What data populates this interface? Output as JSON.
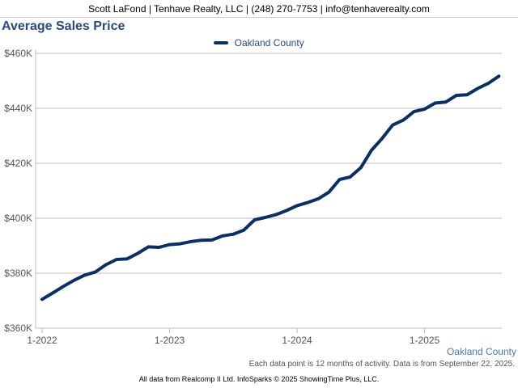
{
  "header": {
    "text": "Scott LaFond | Tenhave Realty, LLC | (248) 270-7753 | info@tenhaverealty.com"
  },
  "chart_data": {
    "type": "line",
    "title": "Average Sales Price",
    "xlabel": "",
    "ylabel": "",
    "ylim": [
      360000,
      460000
    ],
    "y_ticks": [
      360000,
      380000,
      400000,
      420000,
      440000,
      460000
    ],
    "y_tick_labels": [
      "$360K",
      "$380K",
      "$400K",
      "$420K",
      "$440K",
      "$460K"
    ],
    "x_tick_labels": [
      "1-2022",
      "1-2023",
      "1-2024",
      "1-2025"
    ],
    "x_tick_dates": [
      "2022-01",
      "2023-01",
      "2024-01",
      "2025-01"
    ],
    "legend_position": "top-center",
    "grid": "horizontal",
    "colors": {
      "line": "#0b2e63",
      "grid": "#bdbdbd",
      "axis_text": "#555555"
    },
    "x": [
      "2022-01",
      "2022-02",
      "2022-03",
      "2022-04",
      "2022-05",
      "2022-06",
      "2022-07",
      "2022-08",
      "2022-09",
      "2022-10",
      "2022-11",
      "2022-12",
      "2023-01",
      "2023-02",
      "2023-03",
      "2023-04",
      "2023-05",
      "2023-06",
      "2023-07",
      "2023-08",
      "2023-09",
      "2023-10",
      "2023-11",
      "2023-12",
      "2024-01",
      "2024-02",
      "2024-03",
      "2024-04",
      "2024-05",
      "2024-06",
      "2024-07",
      "2024-08",
      "2024-09",
      "2024-10",
      "2024-11",
      "2024-12",
      "2025-01",
      "2025-02",
      "2025-03",
      "2025-04",
      "2025-05",
      "2025-06",
      "2025-07",
      "2025-08"
    ],
    "series": [
      {
        "name": "Oakland County",
        "values": [
          370500,
          372800,
          375200,
          377400,
          379300,
          380400,
          383100,
          385000,
          385200,
          387200,
          389600,
          389400,
          390400,
          390700,
          391500,
          392000,
          392100,
          393600,
          394200,
          395700,
          399400,
          400300,
          401300,
          402800,
          404600,
          405700,
          407100,
          409500,
          414100,
          415000,
          418400,
          424700,
          429000,
          433900,
          435700,
          438800,
          439700,
          441900,
          442300,
          444700,
          444900,
          447200,
          449100,
          451700
        ]
      }
    ]
  },
  "series_caption": "Oakland County",
  "note": "Each data point is 12 months of activity. Data is from September 22, 2025.",
  "footer": "All data from Realcomp II Ltd. InfoSparks © 2025 ShowingTime Plus, LLC."
}
